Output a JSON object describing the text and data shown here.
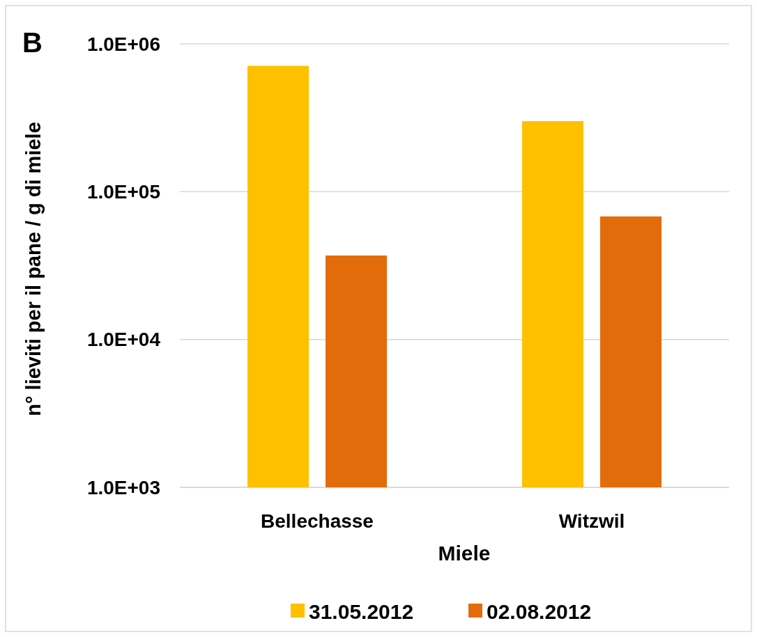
{
  "chart_data": {
    "type": "bar",
    "xlabel": "Miele",
    "ylabel": "n° lieviti per il pane / g di miele",
    "annotations": [
      "B"
    ],
    "categories": [
      "Bellechasse",
      "Witzwil"
    ],
    "series": [
      {
        "name": "31.05.2012",
        "color": "#ffc000",
        "values": [
          710000,
          300000
        ]
      },
      {
        "name": "02.08.2012",
        "color": "#e36c0a",
        "values": [
          37000,
          68000
        ]
      }
    ],
    "log": "y",
    "ylim": [
      1000,
      1000000
    ],
    "yticks": [
      {
        "value": 1000,
        "label": "1.0E+03"
      },
      {
        "value": 10000,
        "label": "1.0E+04"
      },
      {
        "value": 100000,
        "label": "1.0E+05"
      },
      {
        "value": 1000000,
        "label": "1.0E+06"
      }
    ],
    "grid": "y",
    "legend": "bottom"
  }
}
